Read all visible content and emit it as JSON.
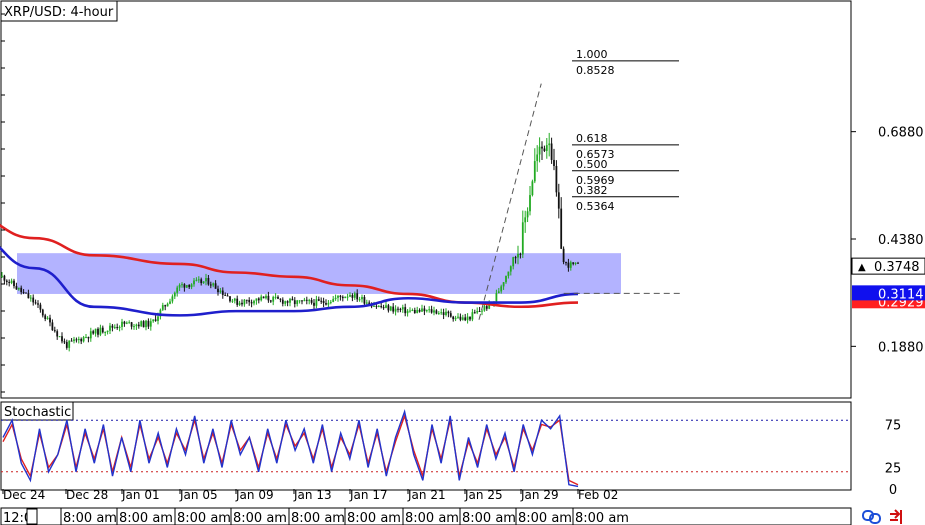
{
  "chart_title": "XRP/USD: 4-hour",
  "indicator_title": "Stochastic",
  "colors": {
    "ma_fast": "#1f1fcc",
    "ma_slow": "#e02020",
    "zone": "#9999ff",
    "fib": "#000000",
    "stoch_main": "#2233cc",
    "stoch_signal": "#e02020",
    "bull": "#22aa22",
    "bear": "#111111"
  },
  "price_axis": {
    "ticks": [
      "0.6880",
      "0.4380",
      "0.1880"
    ],
    "min": 0.07,
    "max": 0.99
  },
  "stoch_axis": {
    "ticks": [
      "75",
      "25",
      "0"
    ],
    "levels": [
      80,
      20
    ]
  },
  "markers": {
    "current": {
      "label": "0.3748",
      "value": 0.3748
    },
    "ma_fast": {
      "label": "0.3114",
      "value": 0.3114
    },
    "ma_slow": {
      "label": "0.2929",
      "value": 0.2929
    }
  },
  "date_labels": [
    "Dec 24",
    "Dec 28",
    "Jan 01",
    "Jan 05",
    "Jan 09",
    "Jan 13",
    "Jan 17",
    "Jan 21",
    "Jan 25",
    "Jan 29",
    "Feb 02"
  ],
  "time_labels": [
    "12:0",
    "8:00 am",
    "8:00 am",
    "8:00 am",
    "8:00 am",
    "8:00 am",
    "8:00 am",
    "8:00 am",
    "8:00 am",
    "8:00 am",
    "8:00 am"
  ],
  "fib_levels": [
    {
      "ratio": "1.000",
      "price": "0.8528",
      "value": 0.8528
    },
    {
      "ratio": "0.618",
      "price": "0.6573",
      "value": 0.6573
    },
    {
      "ratio": "0.500",
      "price": "0.5969",
      "value": 0.5969
    },
    {
      "ratio": "0.382",
      "price": "0.5364",
      "value": 0.5364
    }
  ],
  "zone": {
    "low": 0.31,
    "high": 0.405
  },
  "swing": {
    "low": 0.25,
    "high": 0.8
  },
  "chart_data": {
    "type": "candlestick",
    "title": "XRP/USD: 4-hour",
    "x": [
      "Dec 24",
      "Dec 28",
      "Jan 01",
      "Jan 05",
      "Jan 09",
      "Jan 13",
      "Jan 17",
      "Jan 21",
      "Jan 25",
      "Jan 29",
      "Feb 02"
    ],
    "close_at_dates": [
      0.33,
      0.17,
      0.22,
      0.24,
      0.34,
      0.33,
      0.29,
      0.34,
      0.3,
      0.26,
      0.37
    ],
    "series": [
      {
        "name": "Price",
        "x": [
          "Dec 24",
          "Dec 26",
          "Dec 28",
          "Dec 30",
          "Jan 01",
          "Jan 03",
          "Jan 05",
          "Jan 07",
          "Jan 09",
          "Jan 11",
          "Jan 13",
          "Jan 15",
          "Jan 17",
          "Jan 19",
          "Jan 21",
          "Jan 23",
          "Jan 25",
          "Jan 27",
          "Jan 29",
          "Jan 30",
          "Jan 31",
          "Feb 01",
          "Feb 02"
        ],
        "values": [
          0.35,
          0.29,
          0.19,
          0.22,
          0.24,
          0.24,
          0.33,
          0.34,
          0.29,
          0.3,
          0.29,
          0.29,
          0.31,
          0.28,
          0.27,
          0.27,
          0.25,
          0.29,
          0.43,
          0.62,
          0.68,
          0.38,
          0.375
        ]
      },
      {
        "x": [
          "Dec 22",
          "Dec 26",
          "Dec 30",
          "Jan 05",
          "Jan 09",
          "Jan 13",
          "Jan 17",
          "Jan 21",
          "Jan 25",
          "Jan 29",
          "Feb 02"
        ],
        "values": [
          0.49,
          0.44,
          0.4,
          0.38,
          0.36,
          0.35,
          0.33,
          0.31,
          0.29,
          0.28,
          0.29
        ]
      },
      {
        "x": [
          "Dec 22",
          "Dec 26",
          "Dec 30",
          "Jan 05",
          "Jan 09",
          "Jan 13",
          "Jan 17",
          "Jan 21",
          "Jan 25",
          "Jan 29",
          "Feb 02"
        ],
        "values": [
          0.45,
          0.37,
          0.28,
          0.26,
          0.27,
          0.27,
          0.28,
          0.3,
          0.29,
          0.29,
          0.31
        ]
      }
    ],
    "stochastic": {
      "main": [
        60,
        80,
        30,
        10,
        70,
        20,
        40,
        80,
        20,
        70,
        30,
        75,
        15,
        60,
        20,
        80,
        30,
        65,
        25,
        70,
        40,
        85,
        30,
        70,
        25,
        80,
        40,
        60,
        20,
        70,
        30,
        80,
        45,
        70,
        30,
        75,
        20,
        65,
        35,
        80,
        25,
        70,
        15,
        60,
        90,
        40,
        10,
        75,
        30,
        85,
        10,
        60,
        25,
        75,
        35,
        65,
        20,
        75,
        40,
        80,
        70,
        85,
        5,
        3
      ],
      "signal": [
        55,
        75,
        35,
        15,
        65,
        25,
        40,
        75,
        25,
        65,
        35,
        70,
        20,
        60,
        25,
        75,
        35,
        60,
        30,
        65,
        45,
        80,
        35,
        65,
        30,
        75,
        45,
        60,
        25,
        65,
        35,
        75,
        50,
        65,
        35,
        70,
        25,
        60,
        40,
        75,
        30,
        65,
        20,
        55,
        85,
        45,
        15,
        70,
        35,
        80,
        15,
        55,
        30,
        70,
        40,
        60,
        25,
        70,
        45,
        75,
        72,
        80,
        10,
        5
      ]
    },
    "ylim": [
      0.07,
      0.99
    ]
  }
}
